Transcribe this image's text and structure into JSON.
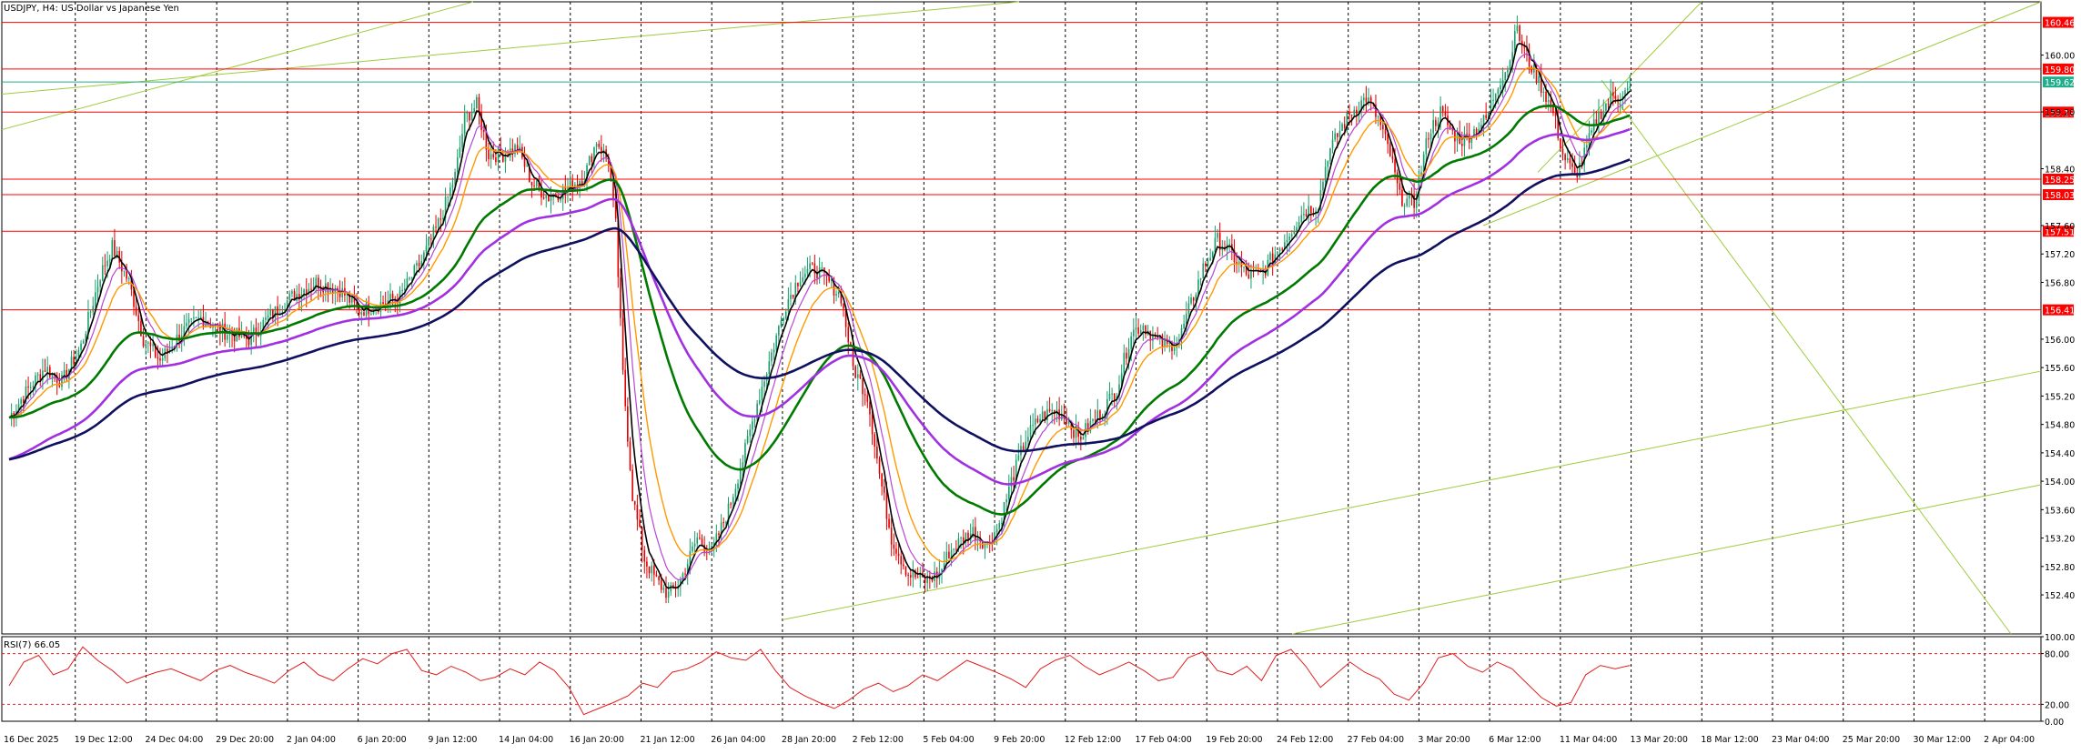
{
  "chart_title": "USDJPY, H4:  US Dollar vs Japanese Yen",
  "rsi_label": "RSI(7) 66.05",
  "colors": {
    "background": "#ffffff",
    "bull_candle": "#1a9e6a",
    "bear_candle": "#e00000",
    "hline": "#ff0000",
    "current_price": "#1fae8a",
    "trendline": "#9ccc3c",
    "grid": "#000000",
    "ma_fast": "#000000",
    "ma_mid": "#b845d8",
    "ma_orange": "#ff9900",
    "ma_green": "#007a00",
    "ma_purple": "#a030e0",
    "ma_navy": "#101060",
    "rsi_line": "#e02020",
    "rsi_level": "#e02020"
  },
  "chart_data": {
    "type": "candlestick",
    "symbol": "USDJPY",
    "timeframe": "H4",
    "ylim": [
      151.85,
      160.75
    ],
    "y_ticks": [
      "160.00",
      "159.20",
      "158.40",
      "157.60",
      "157.20",
      "156.80",
      "156.00",
      "155.60",
      "155.20",
      "154.80",
      "154.40",
      "154.00",
      "153.60",
      "153.20",
      "152.80",
      "152.40"
    ],
    "x_labels": [
      "16 Dec 2025",
      "19 Dec 12:00",
      "24 Dec 04:00",
      "29 Dec 20:00",
      "2 Jan 04:00",
      "6 Jan 20:00",
      "9 Jan 12:00",
      "14 Jan 04:00",
      "16 Jan 20:00",
      "21 Jan 12:00",
      "26 Jan 04:00",
      "28 Jan 20:00",
      "2 Feb 12:00",
      "5 Feb 04:00",
      "9 Feb 20:00",
      "12 Feb 12:00",
      "17 Feb 04:00",
      "19 Feb 20:00",
      "24 Feb 12:00",
      "27 Feb 04:00",
      "3 Mar 20:00",
      "6 Mar 12:00",
      "11 Mar 04:00",
      "13 Mar 20:00",
      "18 Mar 12:00",
      "23 Mar 04:00",
      "25 Mar 20:00",
      "30 Mar 12:00",
      "2 Apr 04:00"
    ],
    "horizontal_lines": [
      {
        "price": "160.461",
        "kind": "resistance"
      },
      {
        "price": "159.804",
        "kind": "resistance"
      },
      {
        "price": "159.621",
        "kind": "current"
      },
      {
        "price": "159.197",
        "kind": "resistance"
      },
      {
        "price": "158.253",
        "kind": "support"
      },
      {
        "price": "158.035",
        "kind": "support"
      },
      {
        "price": "157.519",
        "kind": "support"
      },
      {
        "price": "156.413",
        "kind": "support"
      }
    ],
    "close_path": [
      [
        0,
        154.9
      ],
      [
        8,
        155.3
      ],
      [
        15,
        155.6
      ],
      [
        22,
        155.4
      ],
      [
        30,
        155.9
      ],
      [
        38,
        156.9
      ],
      [
        43,
        157.3
      ],
      [
        50,
        156.8
      ],
      [
        56,
        156.0
      ],
      [
        63,
        155.7
      ],
      [
        72,
        156.1
      ],
      [
        80,
        156.3
      ],
      [
        90,
        156.1
      ],
      [
        100,
        156.0
      ],
      [
        108,
        156.3
      ],
      [
        118,
        156.6
      ],
      [
        128,
        156.8
      ],
      [
        138,
        156.7
      ],
      [
        146,
        156.4
      ],
      [
        155,
        156.5
      ],
      [
        163,
        156.6
      ],
      [
        172,
        157.1
      ],
      [
        180,
        157.7
      ],
      [
        186,
        158.3
      ],
      [
        190,
        159.1
      ],
      [
        195,
        159.3
      ],
      [
        200,
        158.6
      ],
      [
        206,
        158.6
      ],
      [
        212,
        158.7
      ],
      [
        218,
        158.2
      ],
      [
        225,
        158.0
      ],
      [
        232,
        158.1
      ],
      [
        240,
        158.3
      ],
      [
        245,
        158.8
      ],
      [
        250,
        158.5
      ],
      [
        253,
        157.6
      ],
      [
        256,
        155.5
      ],
      [
        260,
        153.8
      ],
      [
        265,
        152.9
      ],
      [
        270,
        152.6
      ],
      [
        275,
        152.4
      ],
      [
        280,
        152.6
      ],
      [
        287,
        153.2
      ],
      [
        293,
        153.0
      ],
      [
        300,
        153.6
      ],
      [
        306,
        154.3
      ],
      [
        312,
        155.1
      ],
      [
        318,
        155.8
      ],
      [
        324,
        156.5
      ],
      [
        330,
        156.9
      ],
      [
        336,
        157.0
      ],
      [
        342,
        156.8
      ],
      [
        347,
        156.6
      ],
      [
        352,
        155.6
      ],
      [
        358,
        155.2
      ],
      [
        363,
        154.1
      ],
      [
        368,
        153.2
      ],
      [
        375,
        152.7
      ],
      [
        382,
        152.6
      ],
      [
        388,
        152.7
      ],
      [
        392,
        153.0
      ],
      [
        398,
        153.2
      ],
      [
        402,
        153.3
      ],
      [
        408,
        153.1
      ],
      [
        413,
        153.4
      ],
      [
        418,
        154.0
      ],
      [
        424,
        154.6
      ],
      [
        430,
        154.9
      ],
      [
        436,
        155.0
      ],
      [
        441,
        154.9
      ],
      [
        446,
        154.6
      ],
      [
        451,
        154.8
      ],
      [
        456,
        155.0
      ],
      [
        462,
        155.3
      ],
      [
        468,
        156.1
      ],
      [
        473,
        156.2
      ],
      [
        478,
        156.0
      ],
      [
        483,
        155.9
      ],
      [
        488,
        156.0
      ],
      [
        492,
        156.4
      ],
      [
        498,
        157.0
      ],
      [
        504,
        157.4
      ],
      [
        510,
        157.2
      ],
      [
        516,
        156.9
      ],
      [
        522,
        156.9
      ],
      [
        528,
        157.2
      ],
      [
        534,
        157.5
      ],
      [
        540,
        157.8
      ],
      [
        546,
        157.9
      ],
      [
        550,
        158.6
      ],
      [
        556,
        159.0
      ],
      [
        560,
        159.2
      ],
      [
        566,
        159.4
      ],
      [
        571,
        159.1
      ],
      [
        576,
        158.6
      ],
      [
        580,
        158.0
      ],
      [
        586,
        157.9
      ],
      [
        592,
        158.9
      ],
      [
        597,
        159.2
      ],
      [
        602,
        158.9
      ],
      [
        606,
        158.8
      ],
      [
        610,
        158.9
      ],
      [
        616,
        159.1
      ],
      [
        621,
        159.6
      ],
      [
        626,
        159.9
      ],
      [
        628,
        160.4
      ],
      [
        634,
        159.9
      ],
      [
        640,
        159.5
      ],
      [
        644,
        159.2
      ],
      [
        648,
        158.6
      ],
      [
        653,
        158.3
      ],
      [
        656,
        158.5
      ],
      [
        662,
        159.1
      ],
      [
        668,
        159.4
      ],
      [
        676,
        159.5
      ]
    ],
    "rsi": {
      "label": "RSI(7)",
      "value": 66.05,
      "levels": [
        80,
        20
      ],
      "ylim": [
        0,
        100
      ],
      "y_ticks": [
        "100.00",
        "80.00",
        "20.00",
        "0.00"
      ],
      "series": [
        42,
        70,
        78,
        55,
        62,
        88,
        72,
        60,
        45,
        52,
        58,
        62,
        55,
        48,
        60,
        66,
        58,
        52,
        45,
        60,
        70,
        55,
        48,
        62,
        74,
        68,
        80,
        85,
        60,
        55,
        65,
        58,
        48,
        52,
        62,
        55,
        70,
        60,
        40,
        8,
        15,
        22,
        30,
        45,
        40,
        58,
        62,
        70,
        82,
        75,
        72,
        85,
        60,
        40,
        30,
        22,
        15,
        25,
        38,
        45,
        35,
        42,
        55,
        48,
        60,
        72,
        65,
        58,
        50,
        40,
        62,
        72,
        78,
        65,
        55,
        62,
        70,
        60,
        48,
        52,
        75,
        82,
        60,
        55,
        65,
        48,
        78,
        85,
        65,
        40,
        55,
        70,
        58,
        50,
        32,
        25,
        45,
        75,
        80,
        65,
        58,
        70,
        62,
        45,
        28,
        18,
        22,
        55,
        66,
        62,
        66
      ]
    }
  }
}
